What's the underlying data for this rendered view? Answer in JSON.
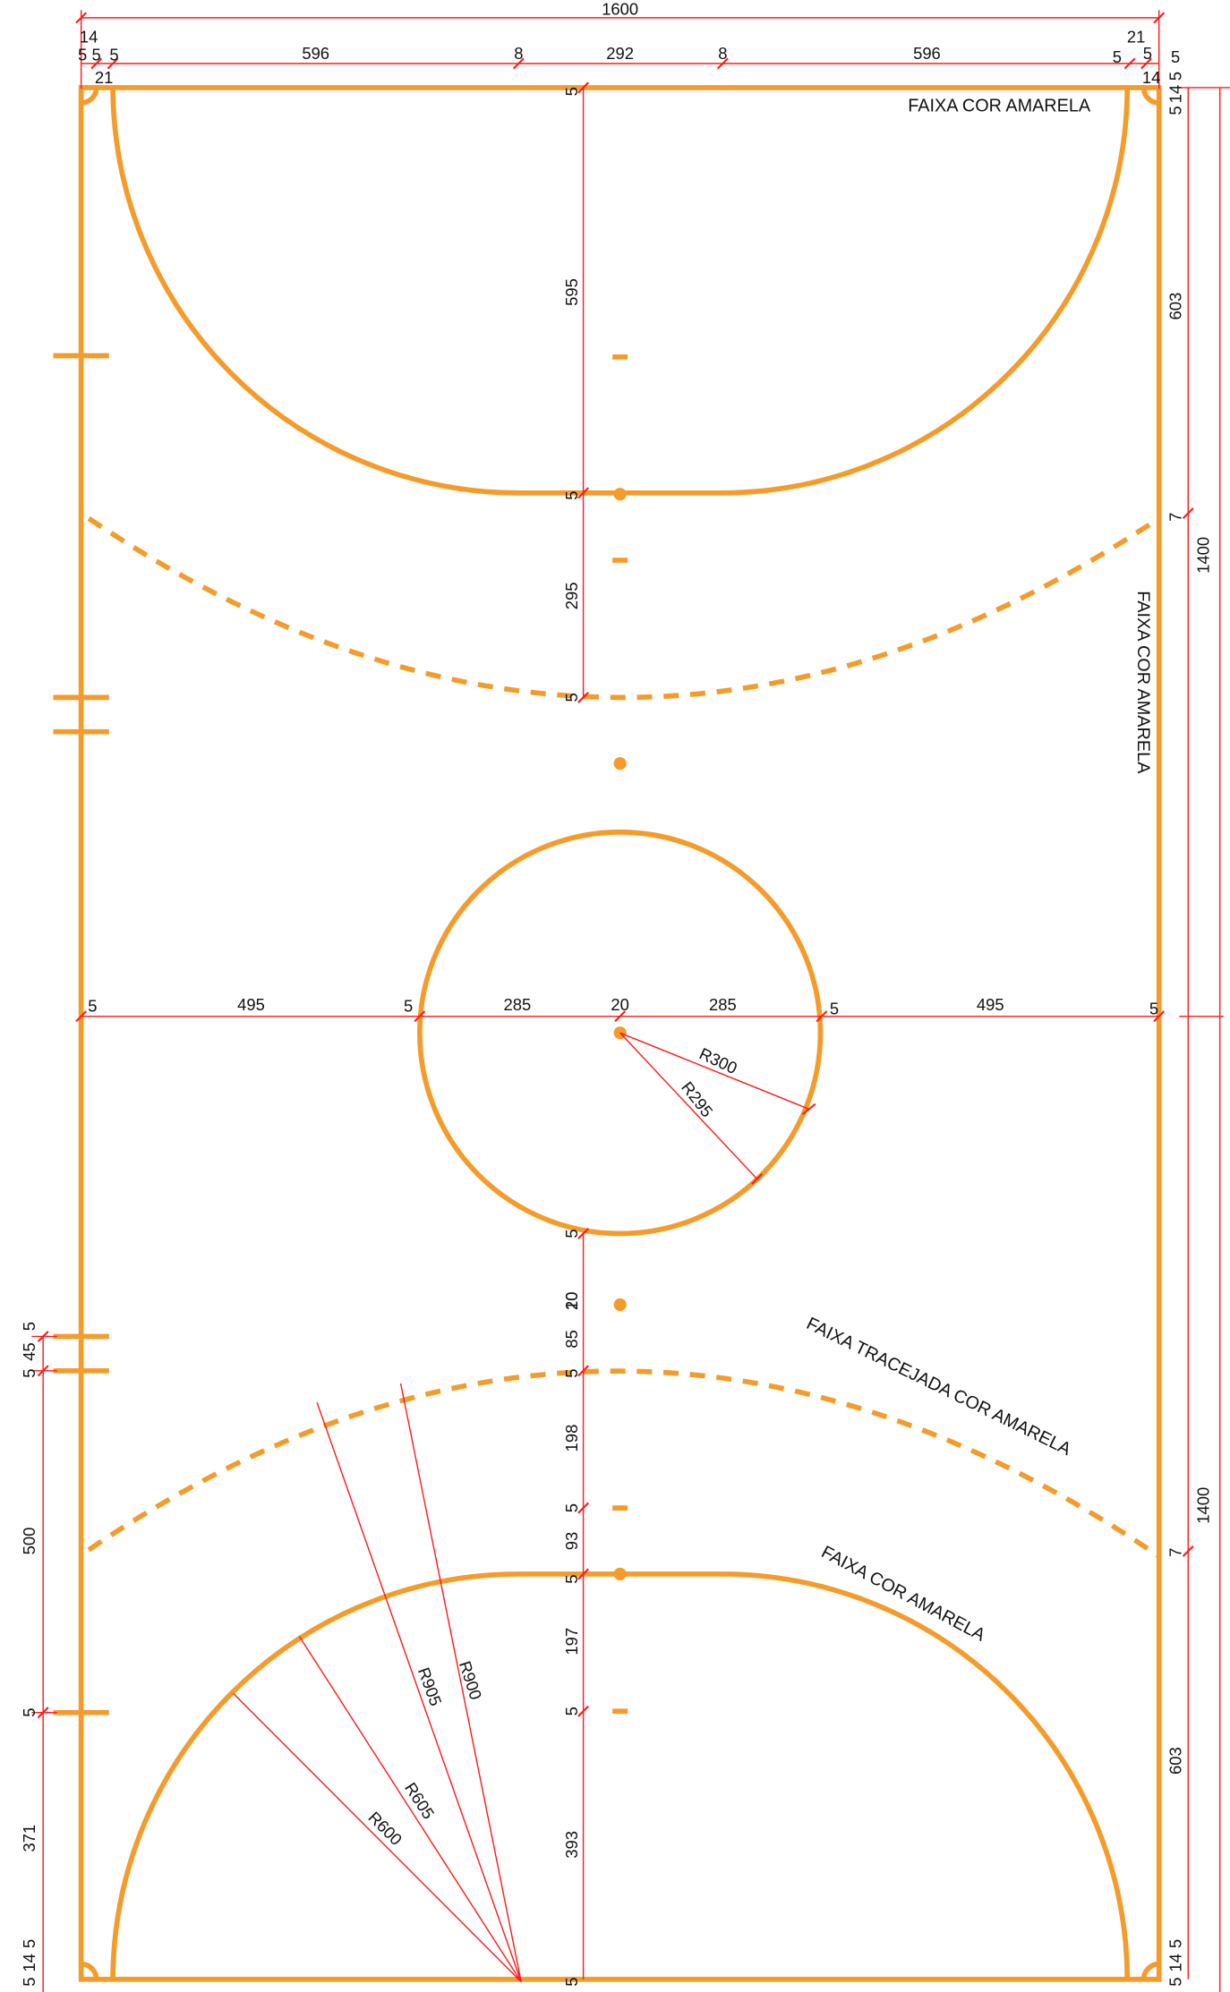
{
  "dimension_labels": [
    "1600",
    "14",
    "21",
    "5",
    "5",
    "5",
    "596",
    "8",
    "292",
    "8",
    "596",
    "5",
    "5",
    "5",
    "21",
    "14",
    "5",
    "14",
    "5",
    "603",
    "7",
    "1400",
    "1400",
    "7",
    "603",
    "5",
    "14",
    "5",
    "5",
    "595",
    "5",
    "295",
    "5",
    "5",
    "495",
    "5",
    "285",
    "20",
    "285",
    "5",
    "495",
    "5",
    "5",
    "20",
    "10",
    "85",
    "5",
    "198",
    "5",
    "93",
    "5",
    "197",
    "5",
    "393",
    "5",
    "5",
    "45",
    "5",
    "500",
    "5",
    "371",
    "5",
    "14",
    "5"
  ],
  "radius_labels": [
    "R300",
    "R295",
    "R905",
    "R900",
    "R605",
    "R600"
  ],
  "annotations": [
    "FAIXA COR AMARELA",
    "FAIXA COR AMARELA",
    "FAIXA TRACEJADA COR AMARELA",
    "FAIXA COR AMARELA"
  ]
}
